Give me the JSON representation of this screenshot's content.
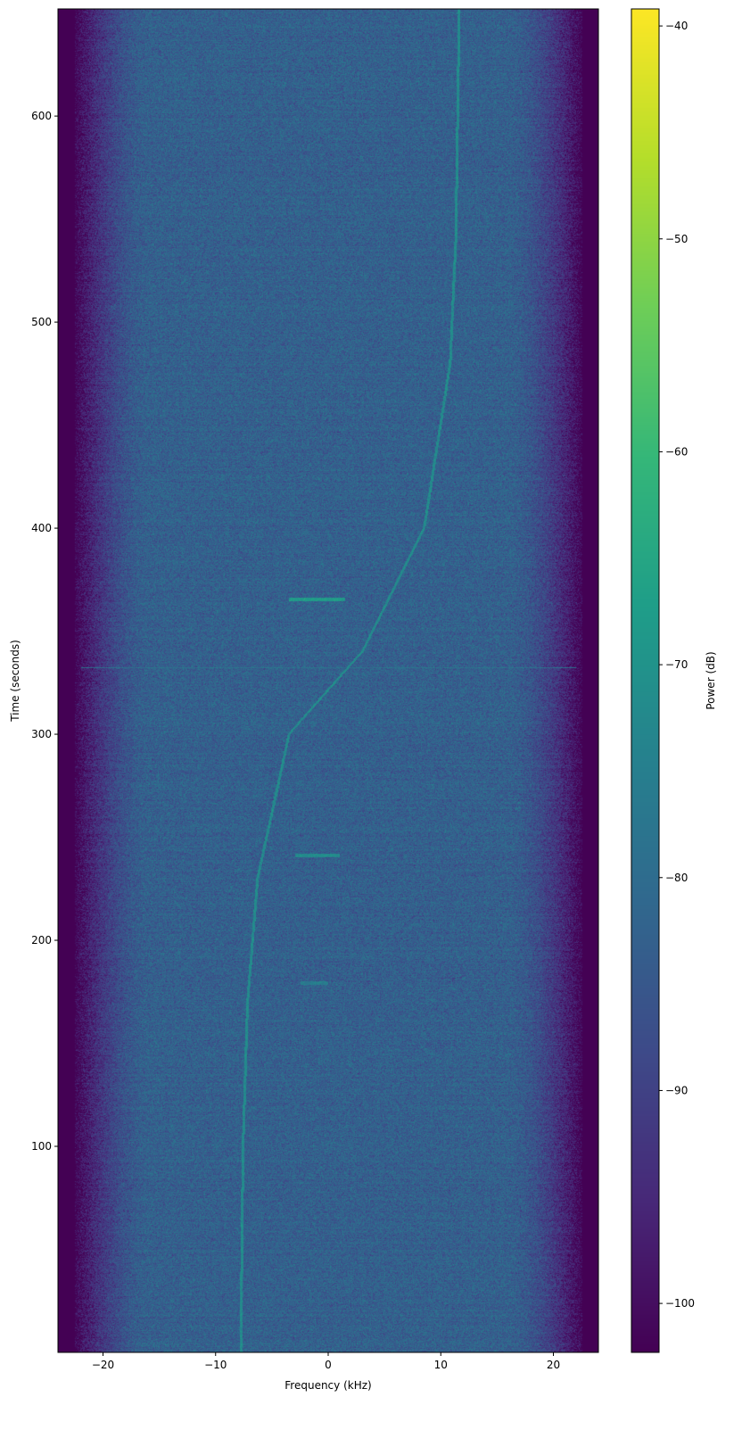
{
  "chart_data": {
    "type": "heatmap",
    "title": "",
    "xlabel": "Frequency (kHz)",
    "ylabel": "Time (seconds)",
    "xlim": [
      -24,
      24
    ],
    "ylim": [
      0,
      652
    ],
    "xticks": [
      -20,
      -10,
      0,
      10,
      20
    ],
    "xtick_labels": [
      "−20",
      "−10",
      "0",
      "10",
      "20"
    ],
    "yticks": [
      100,
      200,
      300,
      400,
      500,
      600
    ],
    "ytick_labels": [
      "100",
      "200",
      "300",
      "400",
      "500",
      "600"
    ],
    "colormap": "viridis",
    "colorbar": {
      "label": "Power (dB)",
      "range": [
        -102.3,
        -39.2
      ],
      "ticks": [
        -40,
        -50,
        -60,
        -70,
        -80,
        -90,
        -100
      ],
      "tick_labels": [
        "−40",
        "−50",
        "−60",
        "−70",
        "−80",
        "−90",
        "−100"
      ]
    },
    "background_level_db": -83,
    "edge_level_db": -102,
    "passband_edges_khz": [
      -22.5,
      22.5
    ],
    "traces": [
      {
        "kind": "chirp",
        "points": [
          [
            -7.8,
            0
          ],
          [
            -7.6,
            100
          ],
          [
            -7.2,
            170
          ],
          [
            -6.3,
            230
          ],
          [
            -3.5,
            300
          ],
          [
            3,
            340
          ],
          [
            8.5,
            400
          ],
          [
            10.8,
            480
          ],
          [
            11.3,
            540
          ],
          [
            11.6,
            652
          ]
        ],
        "level_db": -72
      },
      {
        "kind": "burst",
        "time": 365,
        "f_range": [
          -3.5,
          1.5
        ],
        "level_db": -68
      },
      {
        "kind": "burst",
        "time": 241,
        "f_range": [
          -3,
          1
        ],
        "level_db": -72
      },
      {
        "kind": "burst",
        "time": 179,
        "f_range": [
          -2.5,
          0
        ],
        "level_db": -76
      },
      {
        "kind": "line",
        "time": 332,
        "f_range": [
          -22,
          22
        ],
        "level_db": -78
      }
    ]
  }
}
